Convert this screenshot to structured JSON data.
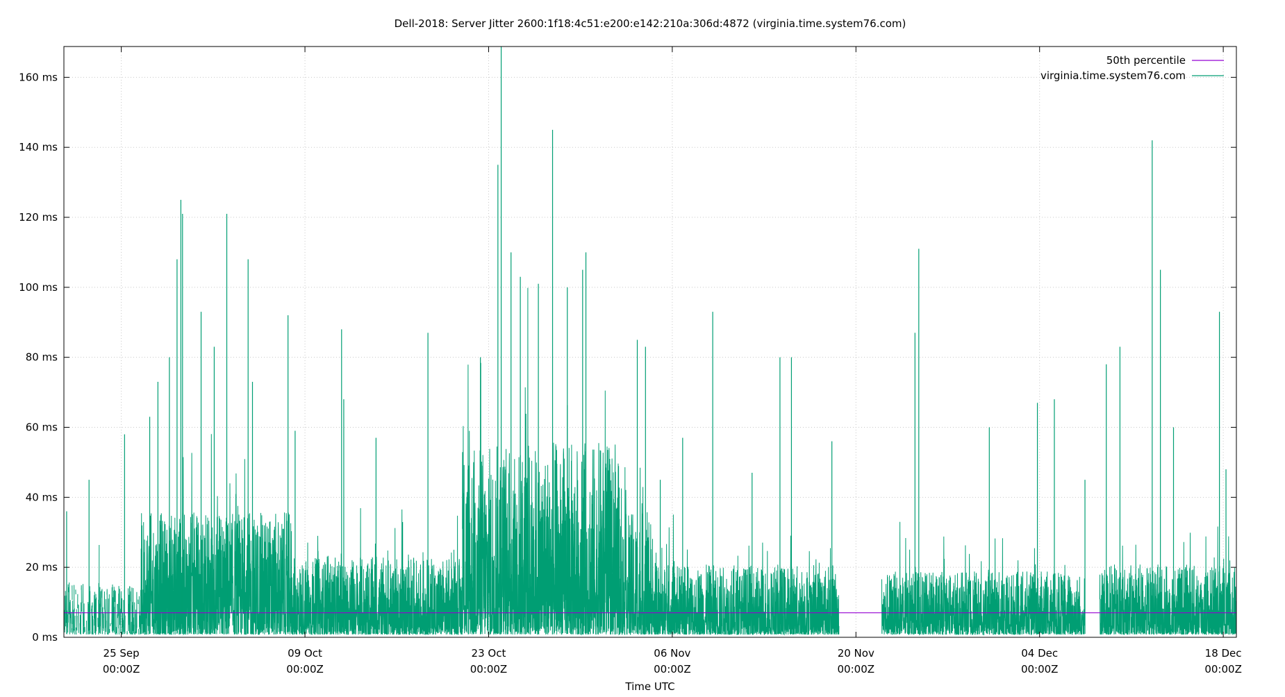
{
  "chart_data": {
    "type": "line",
    "title": "Dell-2018: Server Jitter 2600:1f18:4c51:e200:e142:210a:306d:4872 (virginia.time.system76.com)",
    "xlabel": "Time UTC",
    "ylabel": "",
    "xlim": [
      "2018-09-20T15:00Z",
      "2018-12-19T00:00Z"
    ],
    "ylim": [
      0,
      168.8
    ],
    "y_unit": "ms",
    "grid": true,
    "legend_position": "top-right",
    "x_ticks": [
      {
        "date": "2018-09-25T00:00Z",
        "label1": "25 Sep",
        "label2": "00:00Z"
      },
      {
        "date": "2018-10-09T00:00Z",
        "label1": "09 Oct",
        "label2": "00:00Z"
      },
      {
        "date": "2018-10-23T00:00Z",
        "label1": "23 Oct",
        "label2": "00:00Z"
      },
      {
        "date": "2018-11-06T00:00Z",
        "label1": "06 Nov",
        "label2": "00:00Z"
      },
      {
        "date": "2018-11-20T00:00Z",
        "label1": "20 Nov",
        "label2": "00:00Z"
      },
      {
        "date": "2018-12-04T00:00Z",
        "label1": "04 Dec",
        "label2": "00:00Z"
      },
      {
        "date": "2018-12-18T00:00Z",
        "label1": "18 Dec",
        "label2": "00:00Z"
      }
    ],
    "y_ticks": [
      {
        "value": 0,
        "label": "0 ms"
      },
      {
        "value": 20,
        "label": "20 ms"
      },
      {
        "value": 40,
        "label": "40 ms"
      },
      {
        "value": 60,
        "label": "60 ms"
      },
      {
        "value": 80,
        "label": "80 ms"
      },
      {
        "value": 100,
        "label": "100 ms"
      },
      {
        "value": 120,
        "label": "120 ms"
      },
      {
        "value": 140,
        "label": "140 ms"
      },
      {
        "value": 160,
        "label": "160 ms"
      }
    ],
    "series": [
      {
        "name": "50th percentile",
        "color": "#9400d3",
        "value": 7
      },
      {
        "name": "virginia.time.system76.com",
        "color": "#009e73",
        "segments": [
          {
            "start": "2018-09-20T15:00Z",
            "end": "2018-09-26T12:00Z",
            "typical_max": 15,
            "sparse": true
          },
          {
            "start": "2018-09-26T12:00Z",
            "end": "2018-10-08T00:00Z",
            "typical_max": 35
          },
          {
            "start": "2018-10-08T00:00Z",
            "end": "2018-10-21T00:00Z",
            "typical_max": 22
          },
          {
            "start": "2018-10-21T00:00Z",
            "end": "2018-11-02T00:00Z",
            "typical_max": 55
          },
          {
            "start": "2018-11-02T00:00Z",
            "end": "2018-11-04T12:00Z",
            "typical_max": 35
          },
          {
            "start": "2018-11-04T12:00Z",
            "end": "2018-11-18T17:00Z",
            "typical_max": 20
          },
          {
            "start": "2018-11-21T23:00Z",
            "end": "2018-12-07T11:00Z",
            "typical_max": 18
          },
          {
            "start": "2018-12-08T14:00Z",
            "end": "2018-12-19T00:00Z",
            "typical_max": 20
          }
        ],
        "peaks": [
          [
            "2018-09-20T20:00Z",
            36
          ],
          [
            "2018-09-22T13:00Z",
            45
          ],
          [
            "2018-09-25T06:00Z",
            58
          ],
          [
            "2018-09-27T04:00Z",
            63
          ],
          [
            "2018-09-27T19:00Z",
            73
          ],
          [
            "2018-09-28T16:00Z",
            80
          ],
          [
            "2018-09-29T06:00Z",
            108
          ],
          [
            "2018-09-29T13:00Z",
            125
          ],
          [
            "2018-09-29T16:00Z",
            121
          ],
          [
            "2018-10-01T02:00Z",
            93
          ],
          [
            "2018-10-02T02:00Z",
            83
          ],
          [
            "2018-10-03T01:00Z",
            121
          ],
          [
            "2018-10-04T16:00Z",
            108
          ],
          [
            "2018-10-05T00:00Z",
            73
          ],
          [
            "2018-10-07T17:00Z",
            92
          ],
          [
            "2018-10-08T06:00Z",
            59
          ],
          [
            "2018-10-11T19:00Z",
            88
          ],
          [
            "2018-10-11T23:00Z",
            68
          ],
          [
            "2018-10-14T10:00Z",
            57
          ],
          [
            "2018-10-18T09:00Z",
            87
          ],
          [
            "2018-10-22T09:00Z",
            80
          ],
          [
            "2018-10-23T17:00Z",
            135
          ],
          [
            "2018-10-23T23:00Z",
            170
          ],
          [
            "2018-10-24T17:00Z",
            110
          ],
          [
            "2018-10-25T10:00Z",
            103
          ],
          [
            "2018-10-26T19:00Z",
            101
          ],
          [
            "2018-10-27T21:00Z",
            145
          ],
          [
            "2018-10-29T00:00Z",
            100
          ],
          [
            "2018-10-30T04:00Z",
            105
          ],
          [
            "2018-10-30T10:00Z",
            110
          ],
          [
            "2018-11-03T08:00Z",
            85
          ],
          [
            "2018-11-03T23:00Z",
            83
          ],
          [
            "2018-11-05T02:00Z",
            45
          ],
          [
            "2018-11-06T19:00Z",
            57
          ],
          [
            "2018-11-09T02:00Z",
            93
          ],
          [
            "2018-11-12T02:00Z",
            47
          ],
          [
            "2018-11-14T05:00Z",
            80
          ],
          [
            "2018-11-15T02:00Z",
            80
          ],
          [
            "2018-11-18T04:00Z",
            56
          ],
          [
            "2018-11-24T12:00Z",
            87
          ],
          [
            "2018-11-24T19:00Z",
            111
          ],
          [
            "2018-11-30T04:00Z",
            60
          ],
          [
            "2018-12-03T20:00Z",
            67
          ],
          [
            "2018-12-05T03:00Z",
            68
          ],
          [
            "2018-12-07T11:00Z",
            45
          ],
          [
            "2018-12-09T02:00Z",
            78
          ],
          [
            "2018-12-10T03:00Z",
            83
          ],
          [
            "2018-12-12T14:00Z",
            142
          ],
          [
            "2018-12-13T05:00Z",
            105
          ],
          [
            "2018-12-14T05:00Z",
            60
          ],
          [
            "2018-12-17T17:00Z",
            93
          ],
          [
            "2018-12-18T05:00Z",
            48
          ]
        ]
      }
    ]
  }
}
